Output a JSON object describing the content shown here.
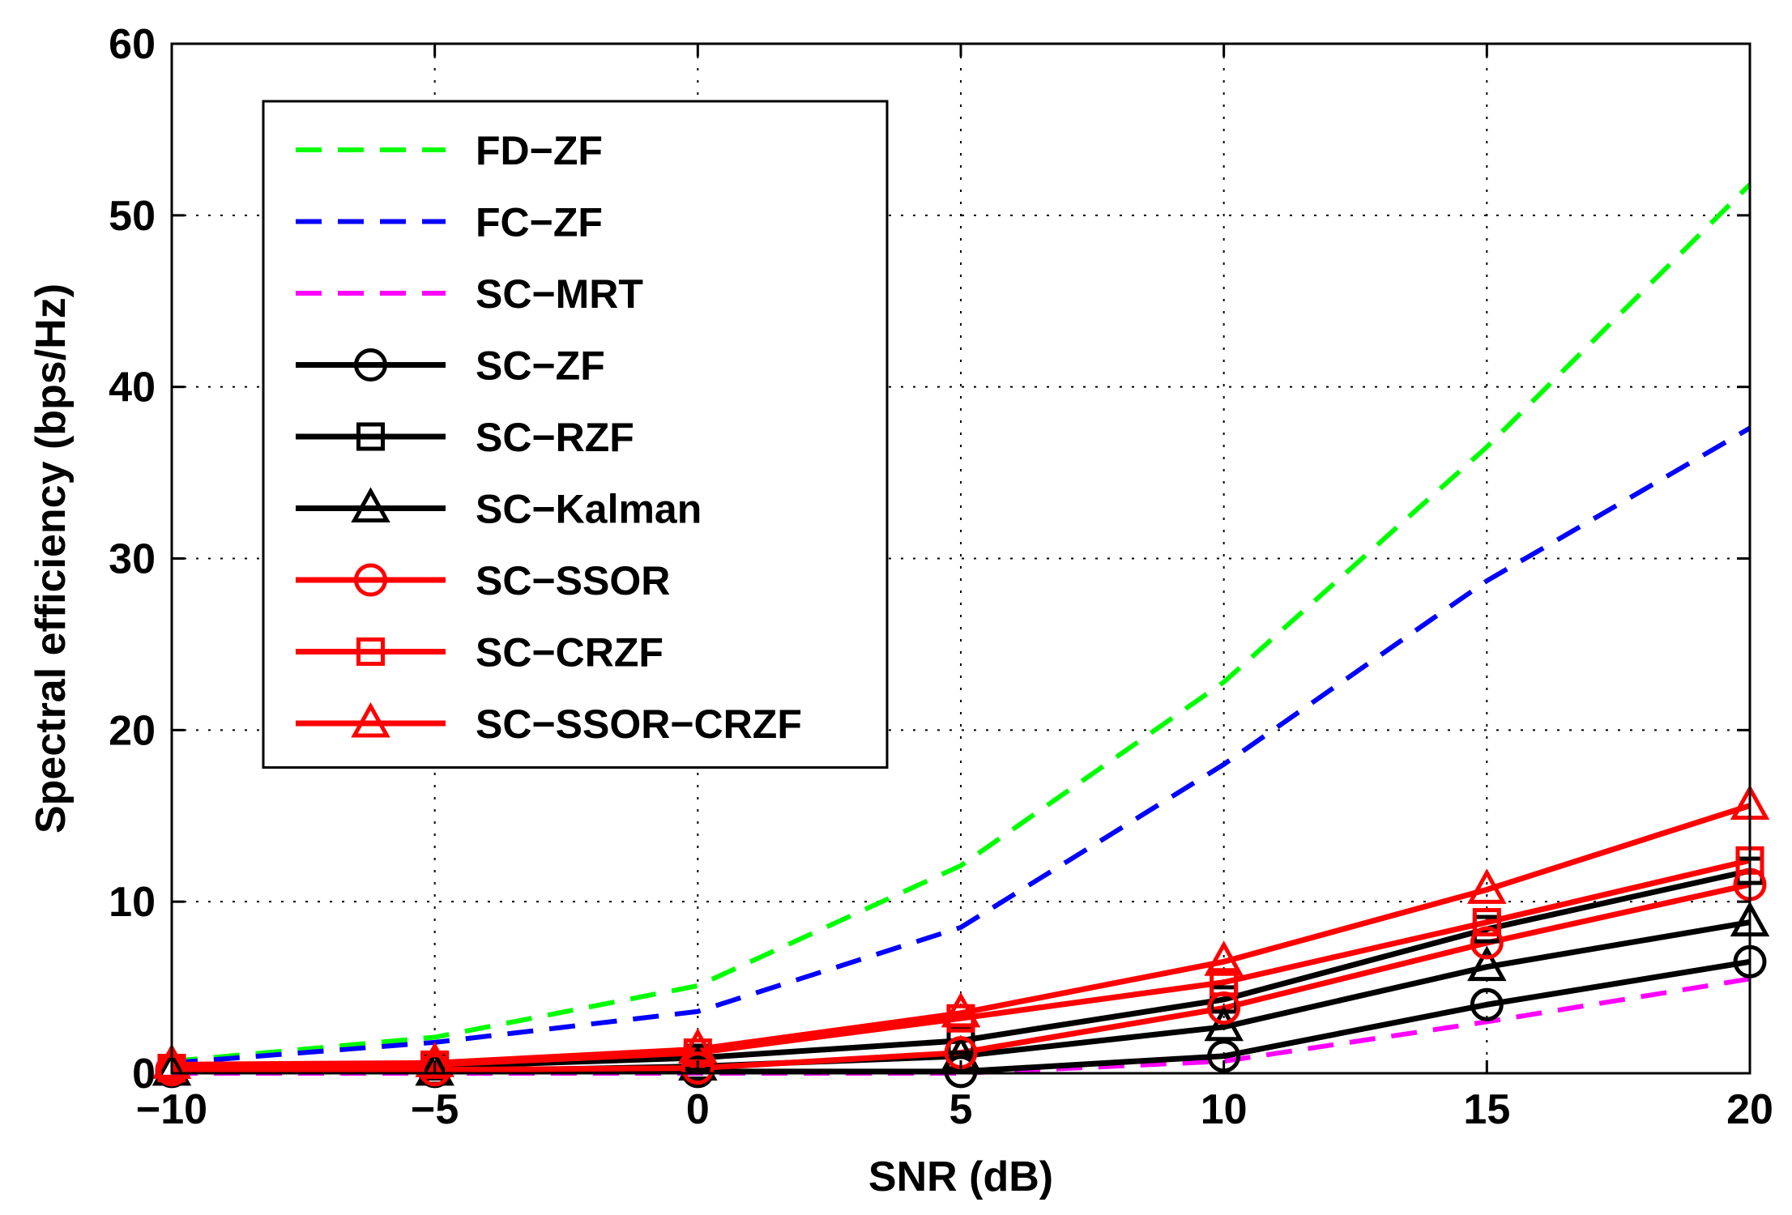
{
  "chart_data": {
    "type": "line",
    "title": "",
    "xlabel": "SNR (dB)",
    "ylabel": "Spectral efficiency (bps/Hz)",
    "xlim": [
      -10,
      20
    ],
    "ylim": [
      0,
      60
    ],
    "xticks": [
      -10,
      -5,
      0,
      5,
      10,
      15,
      20
    ],
    "yticks": [
      0,
      10,
      20,
      30,
      40,
      50,
      60
    ],
    "grid": true,
    "legend_position": "top-left",
    "x": [
      -10,
      -5,
      0,
      5,
      10,
      15,
      20
    ],
    "series": [
      {
        "name": "FD−ZF",
        "values": [
          0.7,
          2.1,
          5.1,
          12.1,
          22.8,
          36.5,
          51.8
        ],
        "color": "#00ff00",
        "dash": "dashed",
        "marker": "none"
      },
      {
        "name": "FC−ZF",
        "values": [
          0.6,
          1.8,
          3.6,
          8.5,
          18.0,
          28.7,
          37.6
        ],
        "color": "#0000ff",
        "dash": "dashed",
        "marker": "none"
      },
      {
        "name": "SC−MRT",
        "values": [
          0.0,
          0.0,
          0.0,
          0.0,
          0.7,
          3.0,
          5.5
        ],
        "color": "#ff00ff",
        "dash": "dashed",
        "marker": "none"
      },
      {
        "name": "SC−ZF",
        "values": [
          0.1,
          0.1,
          0.1,
          0.1,
          1.0,
          4.0,
          6.5
        ],
        "color": "#000000",
        "dash": "solid",
        "marker": "circle"
      },
      {
        "name": "SC−RZF",
        "values": [
          0.3,
          0.4,
          0.9,
          1.9,
          4.3,
          8.4,
          11.8
        ],
        "color": "#000000",
        "dash": "solid",
        "marker": "square"
      },
      {
        "name": "SC−Kalman",
        "values": [
          0.1,
          0.1,
          0.4,
          1.0,
          2.7,
          6.2,
          8.8
        ],
        "color": "#000000",
        "dash": "solid",
        "marker": "triangle"
      },
      {
        "name": "SC−SSOR",
        "values": [
          0.2,
          0.2,
          0.3,
          1.2,
          3.8,
          7.6,
          11.0
        ],
        "color": "#ff0000",
        "dash": "solid",
        "marker": "circle"
      },
      {
        "name": "SC−CRZF",
        "values": [
          0.3,
          0.5,
          1.2,
          3.2,
          5.3,
          8.8,
          12.4
        ],
        "color": "#ff0000",
        "dash": "solid",
        "marker": "square"
      },
      {
        "name": "SC−SSOR−CRZF",
        "values": [
          0.5,
          0.6,
          1.4,
          3.5,
          6.5,
          10.7,
          15.6
        ],
        "color": "#ff0000",
        "dash": "solid",
        "marker": "triangle"
      }
    ]
  }
}
